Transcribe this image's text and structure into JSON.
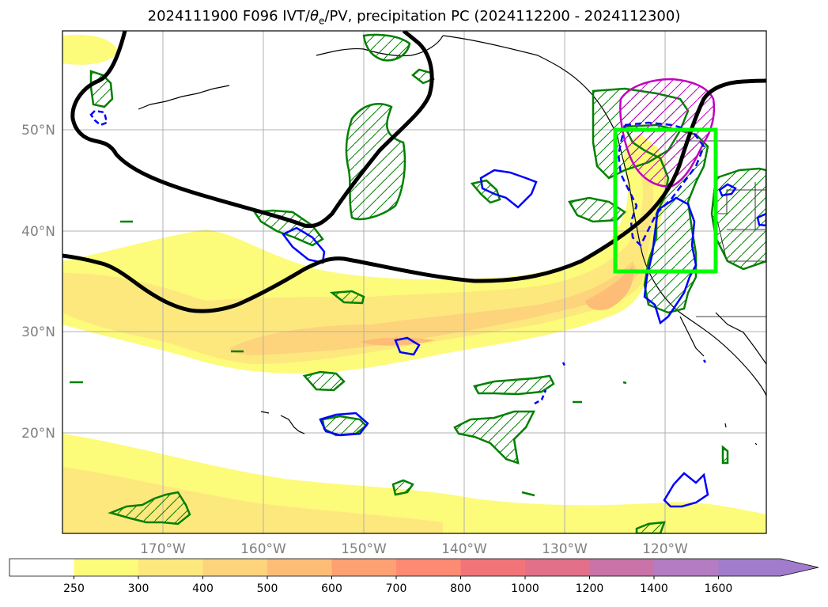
{
  "title": {
    "pre": "2024111900 F096 IVT/",
    "theta": "θ",
    "sub": "e",
    "post": "/PV, precipitation PC (2024112200 - 2024112300)"
  },
  "map": {
    "lat_labels": [
      "50°N",
      "40°N",
      "30°N",
      "20°N"
    ],
    "lon_labels": [
      "170°W",
      "160°W",
      "150°W",
      "140°W",
      "130°W",
      "120°W"
    ]
  },
  "colorbar": {
    "ticks": [
      "250",
      "300",
      "400",
      "500",
      "600",
      "700",
      "800",
      "1000",
      "1200",
      "1400",
      "1600"
    ],
    "colors": [
      "#ffffff",
      "#fdfb7a",
      "#fde87e",
      "#fdd37c",
      "#fdbd76",
      "#fda173",
      "#fd8a73",
      "#f37478",
      "#e17088",
      "#c973a8",
      "#b47cc2",
      "#a27ccc"
    ],
    "extend": "max"
  },
  "colors": {
    "pv_contour": "#000000",
    "precip_green": "#008000",
    "precip_blue": "#0000ff",
    "precip_magenta": "#c000c0",
    "highlight_box": "#00ff00"
  }
}
